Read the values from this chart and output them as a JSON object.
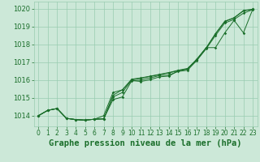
{
  "title": "Graphe pression niveau de la mer (hPa)",
  "xlabel_hours": [
    0,
    1,
    2,
    3,
    4,
    5,
    6,
    7,
    8,
    9,
    10,
    11,
    12,
    13,
    14,
    15,
    16,
    17,
    18,
    19,
    20,
    21,
    22,
    23
  ],
  "ylim": [
    1013.4,
    1020.4
  ],
  "yticks": [
    1014,
    1015,
    1016,
    1017,
    1018,
    1019,
    1020
  ],
  "background_color": "#cce8d8",
  "grid_color": "#99ccb0",
  "line_color": "#1a6e2a",
  "title_color": "#1a6e2a",
  "title_fontsize": 7.5,
  "tick_fontsize": 6.0,
  "series": [
    [
      1014.0,
      1014.3,
      1014.4,
      1013.85,
      1013.78,
      1013.75,
      1013.8,
      1013.82,
      1014.9,
      1015.05,
      1015.95,
      1016.0,
      1016.12,
      1016.25,
      1016.28,
      1016.48,
      1016.55,
      1017.1,
      1017.75,
      1018.5,
      1019.2,
      1019.4,
      1019.75,
      1019.95
    ],
    [
      1014.0,
      1014.3,
      1014.4,
      1013.85,
      1013.78,
      1013.75,
      1013.8,
      1013.82,
      1015.05,
      1015.3,
      1016.0,
      1016.1,
      1016.2,
      1016.3,
      1016.4,
      1016.52,
      1016.62,
      1017.12,
      1017.8,
      1018.6,
      1019.3,
      1019.5,
      1019.9,
      1019.97
    ],
    [
      1014.0,
      1014.3,
      1014.4,
      1013.85,
      1013.78,
      1013.75,
      1013.8,
      1014.0,
      1015.3,
      1015.45,
      1015.97,
      1015.92,
      1016.02,
      1016.18,
      1016.22,
      1016.52,
      1016.62,
      1017.18,
      1017.82,
      1017.82,
      1018.65,
      1019.35,
      1018.65,
      1019.97
    ],
    [
      1014.0,
      1014.3,
      1014.4,
      1013.85,
      1013.78,
      1013.75,
      1013.8,
      1013.82,
      1015.15,
      1015.45,
      1016.05,
      1016.12,
      1016.22,
      1016.32,
      1016.42,
      1016.55,
      1016.65,
      1017.15,
      1017.8,
      1018.6,
      1019.28,
      1019.48,
      1019.88,
      1019.97
    ]
  ]
}
